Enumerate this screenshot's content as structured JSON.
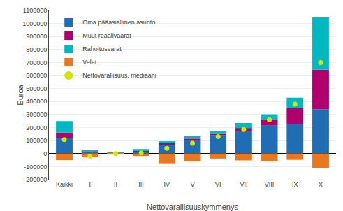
{
  "chart_data": {
    "type": "bar",
    "stacked": true,
    "categories": [
      "Kaikki",
      "I",
      "II",
      "III",
      "IV",
      "V",
      "VI",
      "VII",
      "VIII",
      "IX",
      "X"
    ],
    "series": [
      {
        "name": "Oma pääasiallinen asunto",
        "color": "#1f6eb5",
        "values": [
          120000,
          10000,
          1000,
          20000,
          70000,
          105000,
          140000,
          175000,
          215000,
          225000,
          340000
        ]
      },
      {
        "name": "Muut reaalivaarat",
        "color": "#b0006e",
        "values": [
          42000,
          5000,
          1000,
          5000,
          10000,
          10000,
          12000,
          22000,
          45000,
          125000,
          305000
        ]
      },
      {
        "name": "Rahoitusvarat",
        "color": "#00b8c0",
        "values": [
          88000,
          8000,
          4000,
          10000,
          15000,
          18000,
          22000,
          38000,
          42000,
          80000,
          405000
        ]
      },
      {
        "name": "Velat",
        "color": "#e87722",
        "values": [
          -50000,
          -28000,
          -6000,
          -18000,
          -80000,
          -58000,
          -38000,
          -52000,
          -58000,
          -48000,
          -110000
        ]
      },
      {
        "name": "Nettovarallisuus, mediaani",
        "color": "#d4e600",
        "type": "scatter",
        "marker": "circle",
        "values": [
          107200,
          -20000,
          0,
          5000,
          40000,
          80000,
          130000,
          185000,
          260000,
          380000,
          700000
        ]
      }
    ],
    "xlabel": "Nettovarallisuuskymmenys",
    "ylabel": "Euroa",
    "ylim": [
      -200000,
      1100000
    ],
    "yticks": [
      -200000,
      -100000,
      0,
      100000,
      200000,
      300000,
      400000,
      500000,
      600000,
      700000,
      800000,
      900000,
      1000000,
      1100000
    ],
    "grid": true,
    "legend": "upper left"
  }
}
